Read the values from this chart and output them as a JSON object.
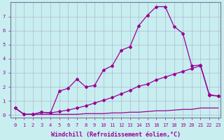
{
  "xlabel": "Windchill (Refroidissement éolien,°C)",
  "bg_color": "#c8eef0",
  "grid_color": "#b0b8d0",
  "line_color": "#990099",
  "spine_color": "#777799",
  "xlim": [
    -0.5,
    23.3
  ],
  "ylim": [
    -0.2,
    8.0
  ],
  "xticks": [
    0,
    1,
    2,
    3,
    4,
    5,
    6,
    7,
    8,
    9,
    10,
    11,
    12,
    13,
    14,
    15,
    16,
    17,
    18,
    19,
    20,
    21,
    22,
    23
  ],
  "yticks": [
    0,
    1,
    2,
    3,
    4,
    5,
    6,
    7
  ],
  "curve_bottom_x": [
    0,
    1,
    2,
    3,
    4,
    5,
    6,
    7,
    8,
    9,
    10,
    11,
    12,
    13,
    14,
    15,
    16,
    17,
    18,
    19,
    20,
    21,
    22,
    23
  ],
  "curve_bottom_y": [
    0.5,
    0.05,
    0.05,
    0.05,
    0.05,
    0.05,
    0.05,
    0.05,
    0.1,
    0.1,
    0.1,
    0.15,
    0.15,
    0.2,
    0.2,
    0.25,
    0.3,
    0.3,
    0.35,
    0.4,
    0.4,
    0.5,
    0.5,
    0.5
  ],
  "curve_mid_x": [
    0,
    1,
    2,
    3,
    4,
    5,
    6,
    7,
    8,
    9,
    10,
    11,
    12,
    13,
    14,
    15,
    16,
    17,
    18,
    19,
    20,
    21,
    22,
    23
  ],
  "curve_mid_y": [
    0.5,
    0.05,
    0.05,
    0.2,
    0.15,
    0.25,
    0.35,
    0.5,
    0.65,
    0.85,
    1.05,
    1.25,
    1.5,
    1.75,
    2.05,
    2.2,
    2.5,
    2.7,
    2.9,
    3.1,
    3.3,
    3.5,
    1.4,
    1.35
  ],
  "curve_top_x": [
    0,
    1,
    2,
    3,
    4,
    5,
    6,
    7,
    8,
    9,
    10,
    11,
    12,
    13,
    14,
    15,
    16,
    17,
    18,
    19,
    20,
    21,
    22,
    23
  ],
  "curve_top_y": [
    0.5,
    0.05,
    0.05,
    0.2,
    0.15,
    1.7,
    1.9,
    2.55,
    2.0,
    2.1,
    3.2,
    3.5,
    4.6,
    4.85,
    6.35,
    7.1,
    7.7,
    7.7,
    6.3,
    5.8,
    3.5,
    3.55,
    1.45,
    1.35
  ],
  "marker": "D",
  "markersize": 2.0,
  "linewidth": 0.9,
  "tick_fontsize": 5.0,
  "label_fontsize": 6.0
}
